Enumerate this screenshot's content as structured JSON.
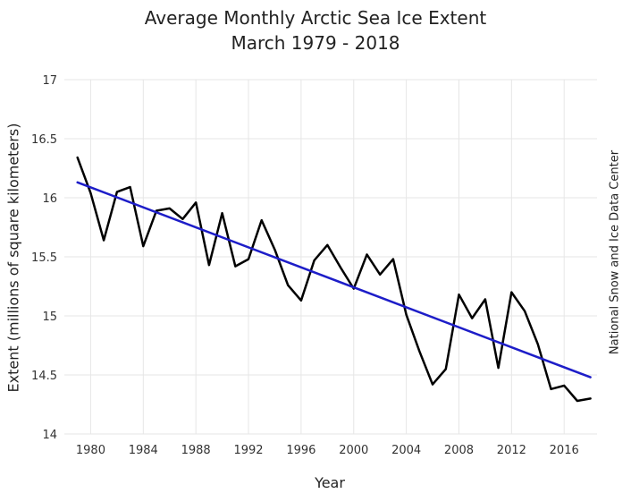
{
  "chart_data": {
    "type": "line",
    "title": "Average Monthly Arctic Sea Ice Extent",
    "subtitle": "March 1979 - 2018",
    "xlabel": "Year",
    "ylabel": "Extent (millions of square kilometers)",
    "credit": "National Snow and Ice Data Center",
    "xlim": [
      1978,
      2018.5
    ],
    "ylim": [
      14,
      17
    ],
    "x_ticks": [
      1980,
      1984,
      1988,
      1992,
      1996,
      2000,
      2004,
      2008,
      2012,
      2016
    ],
    "x_tick_labels": [
      "1980",
      "1984",
      "1988",
      "1992",
      "1996",
      "2000",
      "2004",
      "2008",
      "2012",
      "2016"
    ],
    "y_ticks": [
      14,
      14.5,
      15,
      15.5,
      16,
      16.5,
      17
    ],
    "y_tick_labels": [
      "14",
      "14.5",
      "15",
      "15.5",
      "16",
      "16.5",
      "17"
    ],
    "grid": true,
    "series": [
      {
        "name": "Extent",
        "color": "#000000",
        "x": [
          1979,
          1980,
          1981,
          1982,
          1983,
          1984,
          1985,
          1986,
          1987,
          1988,
          1989,
          1990,
          1991,
          1992,
          1993,
          1994,
          1995,
          1996,
          1997,
          1998,
          1999,
          2000,
          2001,
          2002,
          2003,
          2004,
          2005,
          2006,
          2007,
          2008,
          2009,
          2010,
          2011,
          2012,
          2013,
          2014,
          2015,
          2016,
          2017,
          2018
        ],
        "values": [
          16.34,
          16.04,
          15.64,
          16.05,
          16.09,
          15.59,
          15.89,
          15.91,
          15.82,
          15.96,
          15.43,
          15.87,
          15.42,
          15.48,
          15.81,
          15.56,
          15.26,
          15.13,
          15.47,
          15.6,
          15.41,
          15.23,
          15.52,
          15.35,
          15.48,
          15.01,
          14.7,
          14.42,
          14.55,
          15.18,
          14.98,
          15.14,
          14.56,
          15.2,
          15.04,
          14.76,
          14.38,
          14.41,
          14.28,
          14.3
        ]
      },
      {
        "name": "Trend",
        "color": "#1d1dc8",
        "x": [
          1979,
          2018
        ],
        "values": [
          16.13,
          14.48
        ]
      }
    ]
  }
}
